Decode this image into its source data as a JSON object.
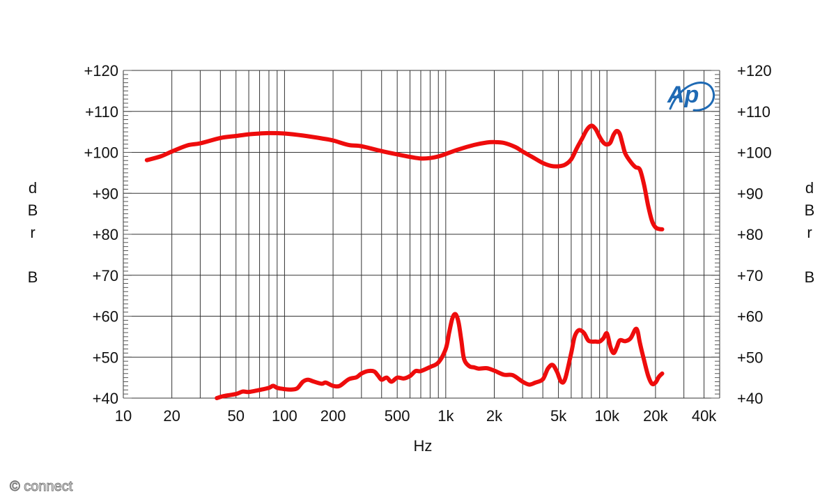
{
  "chart_data": {
    "type": "line",
    "xscale": "log",
    "xlabel": "Hz",
    "ylabel": [
      "d",
      "B",
      "r",
      "",
      "B"
    ],
    "xlim": [
      10,
      50000
    ],
    "ylim": [
      40,
      120
    ],
    "grid": true,
    "x_tick_labels": [
      {
        "value": 10,
        "label": "10"
      },
      {
        "value": 20,
        "label": "20"
      },
      {
        "value": 50,
        "label": "50"
      },
      {
        "value": 100,
        "label": "100"
      },
      {
        "value": 200,
        "label": "200"
      },
      {
        "value": 500,
        "label": "500"
      },
      {
        "value": 1000,
        "label": "1k"
      },
      {
        "value": 2000,
        "label": "2k"
      },
      {
        "value": 5000,
        "label": "5k"
      },
      {
        "value": 10000,
        "label": "10k"
      },
      {
        "value": 20000,
        "label": "20k"
      },
      {
        "value": 40000,
        "label": "40k"
      }
    ],
    "y_ticks": [
      40,
      50,
      60,
      70,
      80,
      90,
      100,
      110,
      120
    ],
    "y_tick_labels": [
      "+40",
      "+50",
      "+60",
      "+70",
      "+80",
      "+90",
      "+100",
      "+110",
      "+120"
    ],
    "line_color": "#ee0c0c",
    "series": [
      {
        "values": [
          [
            14,
            98.1
          ],
          [
            17,
            99.0
          ],
          [
            20,
            100.2
          ],
          [
            25,
            101.7
          ],
          [
            30,
            102.2
          ],
          [
            40,
            103.5
          ],
          [
            50,
            104.0
          ],
          [
            60,
            104.4
          ],
          [
            70,
            104.6
          ],
          [
            80,
            104.7
          ],
          [
            100,
            104.6
          ],
          [
            130,
            104.1
          ],
          [
            170,
            103.4
          ],
          [
            200,
            102.9
          ],
          [
            250,
            101.8
          ],
          [
            300,
            101.5
          ],
          [
            400,
            100.3
          ],
          [
            500,
            99.5
          ],
          [
            600,
            98.9
          ],
          [
            700,
            98.5
          ],
          [
            800,
            98.6
          ],
          [
            900,
            99.0
          ],
          [
            1000,
            99.6
          ],
          [
            1200,
            100.7
          ],
          [
            1500,
            101.8
          ],
          [
            1800,
            102.4
          ],
          [
            2000,
            102.5
          ],
          [
            2300,
            102.3
          ],
          [
            2700,
            101.3
          ],
          [
            3000,
            100.2
          ],
          [
            3500,
            98.7
          ],
          [
            4000,
            97.4
          ],
          [
            4500,
            96.7
          ],
          [
            5000,
            96.6
          ],
          [
            5500,
            97.0
          ],
          [
            6000,
            98.3
          ],
          [
            6500,
            101.0
          ],
          [
            7000,
            103.3
          ],
          [
            7500,
            105.5
          ],
          [
            8000,
            106.5
          ],
          [
            8500,
            105.7
          ],
          [
            9000,
            103.8
          ],
          [
            9500,
            102.4
          ],
          [
            10000,
            101.9
          ],
          [
            10500,
            102.4
          ],
          [
            11000,
            104.3
          ],
          [
            11500,
            105.2
          ],
          [
            12000,
            104.5
          ],
          [
            12500,
            102.0
          ],
          [
            13000,
            99.7
          ],
          [
            14000,
            97.7
          ],
          [
            15000,
            96.4
          ],
          [
            16000,
            95.8
          ],
          [
            17000,
            92.0
          ],
          [
            18000,
            87.0
          ],
          [
            19000,
            83.3
          ],
          [
            20000,
            81.7
          ],
          [
            21000,
            81.3
          ],
          [
            22000,
            81.2
          ]
        ]
      },
      {
        "values": [
          [
            38,
            40.0
          ],
          [
            42,
            40.5
          ],
          [
            50,
            41.0
          ],
          [
            55,
            41.6
          ],
          [
            60,
            41.5
          ],
          [
            70,
            42.0
          ],
          [
            80,
            42.5
          ],
          [
            85,
            43.0
          ],
          [
            90,
            42.5
          ],
          [
            100,
            42.2
          ],
          [
            110,
            42.1
          ],
          [
            120,
            42.4
          ],
          [
            130,
            44.0
          ],
          [
            140,
            44.5
          ],
          [
            150,
            44.1
          ],
          [
            170,
            43.5
          ],
          [
            180,
            43.8
          ],
          [
            200,
            43.0
          ],
          [
            220,
            43.0
          ],
          [
            250,
            44.6
          ],
          [
            280,
            45.1
          ],
          [
            300,
            46.0
          ],
          [
            330,
            46.6
          ],
          [
            360,
            46.5
          ],
          [
            380,
            45.5
          ],
          [
            400,
            44.5
          ],
          [
            430,
            45.0
          ],
          [
            460,
            44.0
          ],
          [
            500,
            45.0
          ],
          [
            550,
            44.8
          ],
          [
            600,
            45.4
          ],
          [
            650,
            46.6
          ],
          [
            700,
            46.6
          ],
          [
            800,
            47.6
          ],
          [
            900,
            48.7
          ],
          [
            1000,
            52.0
          ],
          [
            1050,
            56.0
          ],
          [
            1100,
            59.5
          ],
          [
            1150,
            60.5
          ],
          [
            1200,
            58.5
          ],
          [
            1250,
            54.0
          ],
          [
            1300,
            49.5
          ],
          [
            1400,
            47.8
          ],
          [
            1500,
            47.5
          ],
          [
            1600,
            47.2
          ],
          [
            1800,
            47.3
          ],
          [
            2000,
            46.7
          ],
          [
            2300,
            45.7
          ],
          [
            2600,
            45.6
          ],
          [
            3000,
            44.0
          ],
          [
            3300,
            43.3
          ],
          [
            3600,
            43.8
          ],
          [
            4000,
            44.6
          ],
          [
            4300,
            47.2
          ],
          [
            4600,
            48.1
          ],
          [
            4900,
            46.4
          ],
          [
            5200,
            44.0
          ],
          [
            5500,
            44.7
          ],
          [
            6000,
            51.0
          ],
          [
            6300,
            55.0
          ],
          [
            6700,
            56.6
          ],
          [
            7200,
            55.9
          ],
          [
            7700,
            54.0
          ],
          [
            8500,
            53.8
          ],
          [
            9000,
            53.8
          ],
          [
            9500,
            54.6
          ],
          [
            10000,
            55.8
          ],
          [
            10500,
            52.5
          ],
          [
            11000,
            51.0
          ],
          [
            11500,
            52.4
          ],
          [
            12000,
            54.1
          ],
          [
            13000,
            53.9
          ],
          [
            14000,
            54.6
          ],
          [
            15000,
            56.8
          ],
          [
            15500,
            56.3
          ],
          [
            16000,
            53.5
          ],
          [
            17000,
            49.2
          ],
          [
            18000,
            45.5
          ],
          [
            19000,
            43.5
          ],
          [
            20000,
            43.8
          ],
          [
            21000,
            45.2
          ],
          [
            22000,
            46.0
          ]
        ]
      }
    ]
  },
  "logo": {
    "text": "Ap",
    "color": "#1f6ab4"
  },
  "copyright": "© connect"
}
